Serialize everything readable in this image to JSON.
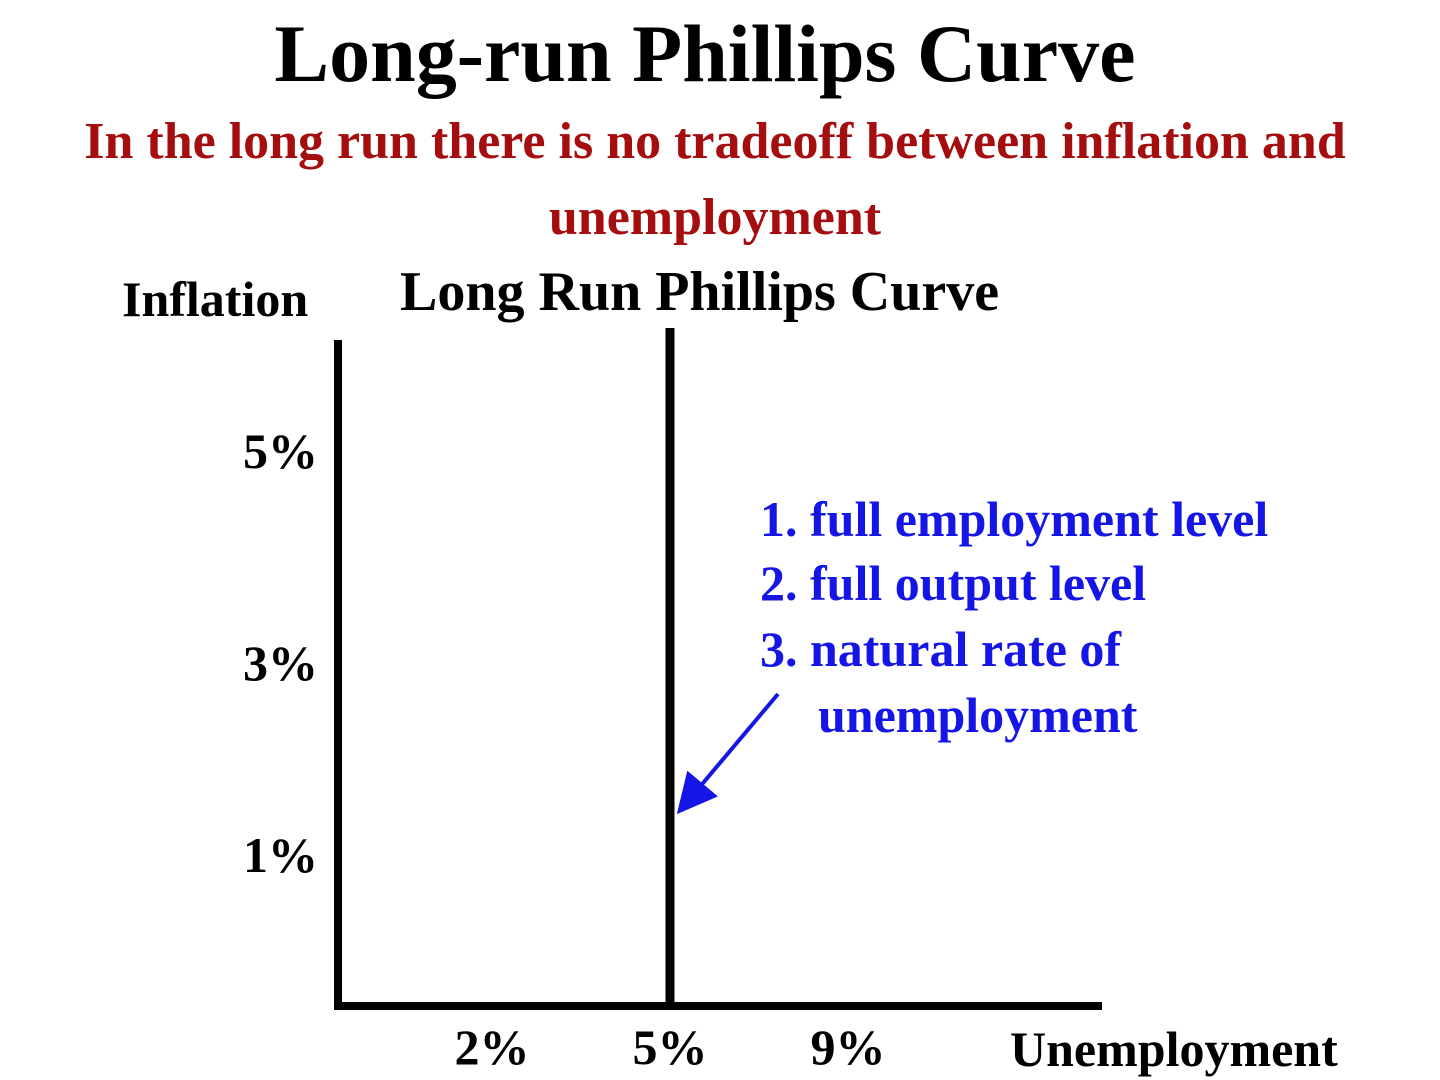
{
  "slide": {
    "title": "Long-run Phillips Curve",
    "subtitle": "In the long run there is no tradeoff between inflation and unemployment",
    "subtitle_color": "#a50e0e"
  },
  "chart_data": {
    "type": "line",
    "title": "Long Run Phillips Curve",
    "xlabel": "Unemployment",
    "ylabel": "Inflation",
    "x_ticks": [
      "2%",
      "5%",
      "9%"
    ],
    "y_ticks": [
      "5%",
      "3%",
      "1%"
    ],
    "series": [
      {
        "name": "Long Run Phillips Curve",
        "type": "vertical",
        "x": 5
      }
    ],
    "annotation": {
      "color": "#1515e6",
      "lines": [
        "1. full employment level",
        "2. full output level",
        "3. natural rate of",
        "unemployment"
      ],
      "arrow_target": {
        "x": 5,
        "y": 1.5
      }
    },
    "grid": false,
    "line_color": "#000000"
  }
}
